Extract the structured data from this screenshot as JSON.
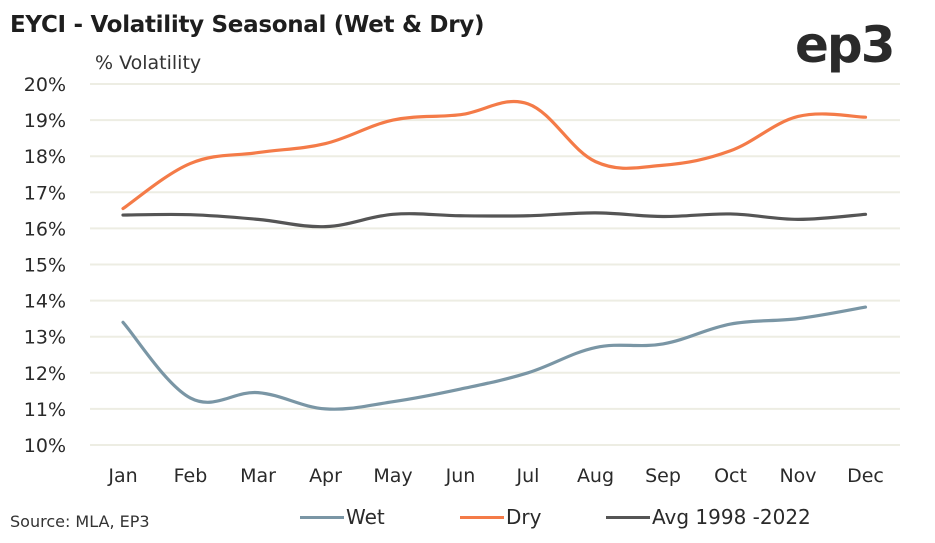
{
  "header": {
    "title": "EYCI - Volatility Seasonal (Wet & Dry)",
    "y_axis_label": "% Volatility",
    "logo_text": "ep3"
  },
  "footer": {
    "source": "Source: MLA, EP3"
  },
  "colors": {
    "wet": "#7A96A5",
    "dry": "#F47B48",
    "avg": "#555555",
    "grid": "#EDEDE3"
  },
  "chart_data": {
    "type": "line",
    "title": "EYCI - Volatility Seasonal (Wet & Dry)",
    "xlabel": "",
    "ylabel": "% Volatility",
    "categories": [
      "Jan",
      "Feb",
      "Mar",
      "Apr",
      "May",
      "Jun",
      "Jul",
      "Aug",
      "Sep",
      "Oct",
      "Nov",
      "Dec"
    ],
    "ylim": [
      10,
      20
    ],
    "yticks": [
      10,
      11,
      12,
      13,
      14,
      15,
      16,
      17,
      18,
      19,
      20
    ],
    "ytick_labels": [
      "10%",
      "11%",
      "12%",
      "13%",
      "14%",
      "15%",
      "16%",
      "17%",
      "18%",
      "19%",
      "20%"
    ],
    "grid": true,
    "legend_position": "bottom",
    "series": [
      {
        "name": "Wet",
        "color_key": "wet",
        "values": [
          13.4,
          11.3,
          11.45,
          11.0,
          11.2,
          11.55,
          12.0,
          12.7,
          12.8,
          13.35,
          13.5,
          13.82
        ]
      },
      {
        "name": "Dry",
        "color_key": "dry",
        "values": [
          16.55,
          17.8,
          18.1,
          18.35,
          19.0,
          19.15,
          19.45,
          17.85,
          17.75,
          18.15,
          19.1,
          19.08
        ]
      },
      {
        "name": "Avg 1998 -2022",
        "color_key": "avg",
        "values": [
          16.37,
          16.38,
          16.25,
          16.05,
          16.39,
          16.35,
          16.35,
          16.43,
          16.33,
          16.4,
          16.25,
          16.39
        ]
      }
    ]
  }
}
